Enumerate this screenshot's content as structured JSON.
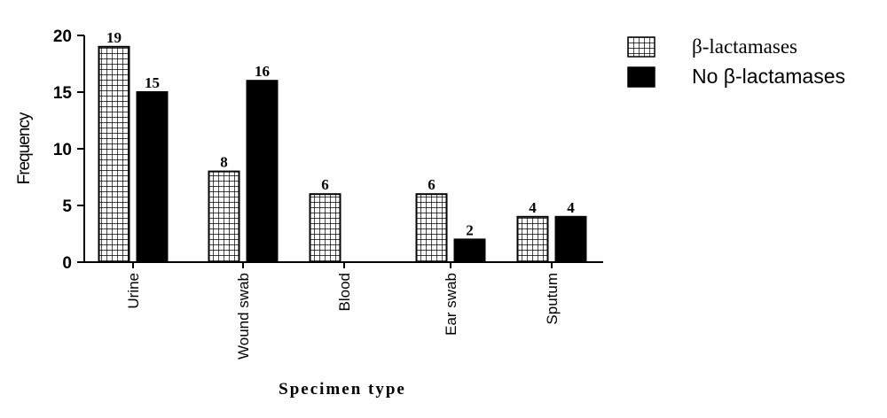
{
  "chart_data": {
    "type": "bar",
    "title": "",
    "xlabel": "Specimen type",
    "ylabel": "Frequency",
    "ylim": [
      0,
      20
    ],
    "yticks": [
      0,
      5,
      10,
      15,
      20
    ],
    "categories": [
      "Urine",
      "Wound swab",
      "Blood",
      "Ear swab",
      "Sputum"
    ],
    "series": [
      {
        "name": "β-lactamases",
        "values": [
          19,
          8,
          6,
          6,
          4
        ],
        "labels": [
          "19",
          "8",
          "6",
          "6",
          "4"
        ],
        "pattern": "grid"
      },
      {
        "name": "No β-lactamases",
        "values": [
          15,
          16,
          null,
          2,
          4
        ],
        "labels": [
          "15",
          "16",
          "",
          "2",
          "4"
        ],
        "pattern": "solid"
      }
    ],
    "legend": "top-right",
    "grid": false,
    "colors": {
      "ink": "#000000",
      "background": "#ffffff"
    }
  }
}
